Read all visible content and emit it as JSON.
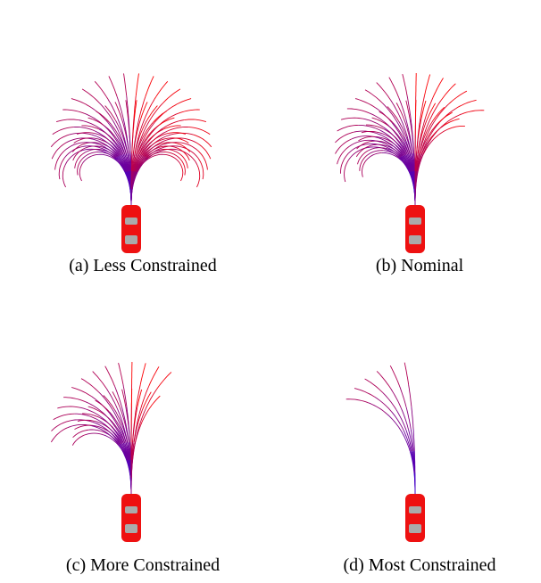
{
  "panels": [
    {
      "caption": "(a) Less Constrained"
    },
    {
      "caption": "(b) Nominal"
    },
    {
      "caption": "(c) More Constrained"
    },
    {
      "caption": "(d) Most Constrained"
    }
  ]
}
